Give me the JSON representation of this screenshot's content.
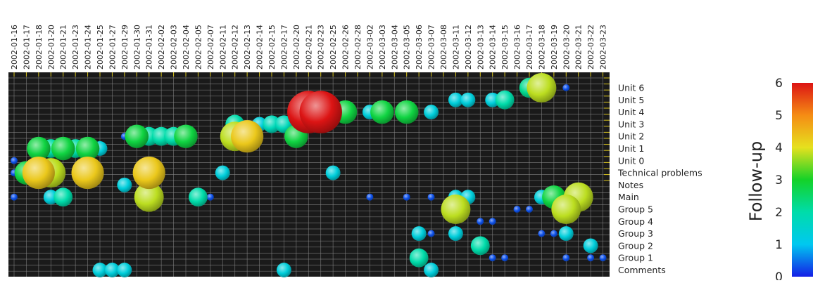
{
  "chart_data": {
    "type": "scatter",
    "title": "",
    "xlabel": "",
    "ylabel": "",
    "x_categories": [
      "2002-01-16",
      "2002-01-17",
      "2002-01-18",
      "2002-01-20",
      "2002-01-21",
      "2002-01-23",
      "2002-01-24",
      "2002-01-25",
      "2002-01-27",
      "2002-01-29",
      "2002-01-30",
      "2002-01-31",
      "2002-02-02",
      "2002-02-03",
      "2002-02-04",
      "2002-02-05",
      "2002-02-07",
      "2002-02-11",
      "2002-02-12",
      "2002-02-13",
      "2002-02-14",
      "2002-02-15",
      "2002-02-17",
      "2002-02-20",
      "2002-02-21",
      "2002-02-23",
      "2002-02-25",
      "2002-02-26",
      "2002-02-28",
      "2002-03-02",
      "2002-03-03",
      "2002-03-04",
      "2002-03-05",
      "2002-03-06",
      "2002-03-07",
      "2002-03-08",
      "2002-03-11",
      "2002-03-12",
      "2002-03-13",
      "2002-03-14",
      "2002-03-15",
      "2002-03-16",
      "2002-03-17",
      "2002-03-18",
      "2002-03-19",
      "2002-03-20",
      "2002-03-21",
      "2002-03-22",
      "2002-03-23"
    ],
    "y_categories": [
      "Unit 6",
      "Unit 5",
      "Unit 4",
      "Unit 3",
      "Unit 2",
      "Unit 1",
      "Unit 0",
      "Technical problems",
      "Notes",
      "Main",
      "Group 5",
      "Group 4",
      "Group 3",
      "Group 2",
      "Group 1",
      "Comments"
    ],
    "colorbar": {
      "label": "Follow-up",
      "min": 0,
      "max": 6,
      "ticks": [
        "0",
        "1",
        "2",
        "3",
        "4",
        "5",
        "6"
      ]
    },
    "points": [
      {
        "x": "2002-03-17",
        "y": "Unit 6",
        "value": 2.2
      },
      {
        "x": "2002-03-18",
        "y": "Unit 6",
        "value": 3.8
      },
      {
        "x": "2002-03-20",
        "y": "Unit 6",
        "value": 0.3
      },
      {
        "x": "2002-03-11",
        "y": "Unit 5",
        "value": 1.3
      },
      {
        "x": "2002-03-12",
        "y": "Unit 5",
        "value": 1.3
      },
      {
        "x": "2002-03-14",
        "y": "Unit 5",
        "value": 1.3
      },
      {
        "x": "2002-03-15",
        "y": "Unit 5",
        "value": 2.0
      },
      {
        "x": "2002-02-21",
        "y": "Unit 4",
        "value": 6.0
      },
      {
        "x": "2002-02-23",
        "y": "Unit 4",
        "value": 6.0
      },
      {
        "x": "2002-02-25",
        "y": "Unit 4",
        "value": 1.2
      },
      {
        "x": "2002-02-26",
        "y": "Unit 4",
        "value": 2.8
      },
      {
        "x": "2002-03-02",
        "y": "Unit 4",
        "value": 1.3
      },
      {
        "x": "2002-03-03",
        "y": "Unit 4",
        "value": 2.8
      },
      {
        "x": "2002-03-05",
        "y": "Unit 4",
        "value": 2.8
      },
      {
        "x": "2002-03-07",
        "y": "Unit 4",
        "value": 1.3
      },
      {
        "x": "2002-02-12",
        "y": "Unit 3",
        "value": 2.0
      },
      {
        "x": "2002-02-14",
        "y": "Unit 3",
        "value": 1.3
      },
      {
        "x": "2002-02-15",
        "y": "Unit 3",
        "value": 1.8
      },
      {
        "x": "2002-02-17",
        "y": "Unit 3",
        "value": 1.8
      },
      {
        "x": "2002-02-20",
        "y": "Unit 3",
        "value": 1.3
      },
      {
        "x": "2002-02-21",
        "y": "Unit 3",
        "value": 1.3
      },
      {
        "x": "2002-01-29",
        "y": "Unit 2",
        "value": 0.3
      },
      {
        "x": "2002-01-30",
        "y": "Unit 2",
        "value": 2.8
      },
      {
        "x": "2002-01-31",
        "y": "Unit 2",
        "value": 2.0
      },
      {
        "x": "2002-02-02",
        "y": "Unit 2",
        "value": 2.0
      },
      {
        "x": "2002-02-03",
        "y": "Unit 2",
        "value": 2.0
      },
      {
        "x": "2002-02-04",
        "y": "Unit 2",
        "value": 2.8
      },
      {
        "x": "2002-02-12",
        "y": "Unit 2",
        "value": 3.8
      },
      {
        "x": "2002-02-13",
        "y": "Unit 2",
        "value": 4.3
      },
      {
        "x": "2002-02-20",
        "y": "Unit 2",
        "value": 2.8
      },
      {
        "x": "2002-01-18",
        "y": "Unit 1",
        "value": 2.8
      },
      {
        "x": "2002-01-20",
        "y": "Unit 1",
        "value": 2.0
      },
      {
        "x": "2002-01-21",
        "y": "Unit 1",
        "value": 2.8
      },
      {
        "x": "2002-01-23",
        "y": "Unit 1",
        "value": 2.0
      },
      {
        "x": "2002-01-24",
        "y": "Unit 1",
        "value": 2.8
      },
      {
        "x": "2002-01-25",
        "y": "Unit 1",
        "value": 1.3
      },
      {
        "x": "2002-01-16",
        "y": "Unit 0",
        "value": 0.3
      },
      {
        "x": "2002-01-16",
        "y": "Technical problems",
        "value": 0.3
      },
      {
        "x": "2002-01-17",
        "y": "Technical problems",
        "value": 2.8
      },
      {
        "x": "2002-01-18",
        "y": "Technical problems",
        "value": 4.3
      },
      {
        "x": "2002-01-20",
        "y": "Technical problems",
        "value": 3.8
      },
      {
        "x": "2002-01-24",
        "y": "Technical problems",
        "value": 4.3
      },
      {
        "x": "2002-01-31",
        "y": "Technical problems",
        "value": 4.3
      },
      {
        "x": "2002-02-11",
        "y": "Technical problems",
        "value": 1.3
      },
      {
        "x": "2002-02-25",
        "y": "Technical problems",
        "value": 1.3
      },
      {
        "x": "2002-01-29",
        "y": "Notes",
        "value": 1.3
      },
      {
        "x": "2002-01-16",
        "y": "Main",
        "value": 0.3
      },
      {
        "x": "2002-01-20",
        "y": "Main",
        "value": 1.3
      },
      {
        "x": "2002-01-21",
        "y": "Main",
        "value": 2.0
      },
      {
        "x": "2002-01-31",
        "y": "Main",
        "value": 3.8
      },
      {
        "x": "2002-02-05",
        "y": "Main",
        "value": 2.0
      },
      {
        "x": "2002-02-07",
        "y": "Main",
        "value": 0.3
      },
      {
        "x": "2002-03-02",
        "y": "Main",
        "value": 0.3
      },
      {
        "x": "2002-03-05",
        "y": "Main",
        "value": 0.3
      },
      {
        "x": "2002-03-07",
        "y": "Main",
        "value": 0.3
      },
      {
        "x": "2002-03-11",
        "y": "Main",
        "value": 1.3
      },
      {
        "x": "2002-03-12",
        "y": "Main",
        "value": 1.3
      },
      {
        "x": "2002-03-18",
        "y": "Main",
        "value": 1.3
      },
      {
        "x": "2002-03-19",
        "y": "Main",
        "value": 2.8
      },
      {
        "x": "2002-03-21",
        "y": "Main",
        "value": 3.8
      },
      {
        "x": "2002-03-11",
        "y": "Group 5",
        "value": 3.8
      },
      {
        "x": "2002-03-16",
        "y": "Group 5",
        "value": 0.3
      },
      {
        "x": "2002-03-17",
        "y": "Group 5",
        "value": 0.3
      },
      {
        "x": "2002-03-20",
        "y": "Group 5",
        "value": 3.8
      },
      {
        "x": "2002-03-13",
        "y": "Group 4",
        "value": 0.3
      },
      {
        "x": "2002-03-14",
        "y": "Group 4",
        "value": 0.3
      },
      {
        "x": "2002-03-06",
        "y": "Group 3",
        "value": 1.3
      },
      {
        "x": "2002-03-07",
        "y": "Group 3",
        "value": 0.3
      },
      {
        "x": "2002-03-11",
        "y": "Group 3",
        "value": 1.3
      },
      {
        "x": "2002-03-18",
        "y": "Group 3",
        "value": 0.3
      },
      {
        "x": "2002-03-19",
        "y": "Group 3",
        "value": 0.3
      },
      {
        "x": "2002-03-20",
        "y": "Group 3",
        "value": 1.3
      },
      {
        "x": "2002-03-13",
        "y": "Group 2",
        "value": 2.0
      },
      {
        "x": "2002-03-22",
        "y": "Group 2",
        "value": 1.3
      },
      {
        "x": "2002-03-06",
        "y": "Group 1",
        "value": 2.0
      },
      {
        "x": "2002-03-14",
        "y": "Group 1",
        "value": 0.3
      },
      {
        "x": "2002-03-15",
        "y": "Group 1",
        "value": 0.3
      },
      {
        "x": "2002-03-20",
        "y": "Group 1",
        "value": 0.3
      },
      {
        "x": "2002-03-22",
        "y": "Group 1",
        "value": 0.3
      },
      {
        "x": "2002-03-23",
        "y": "Group 1",
        "value": 0.3
      },
      {
        "x": "2002-01-25",
        "y": "Comments",
        "value": 1.3
      },
      {
        "x": "2002-01-27",
        "y": "Comments",
        "value": 1.3
      },
      {
        "x": "2002-01-29",
        "y": "Comments",
        "value": 1.3
      },
      {
        "x": "2002-02-17",
        "y": "Comments",
        "value": 1.3
      },
      {
        "x": "2002-03-07",
        "y": "Comments",
        "value": 1.3
      }
    ],
    "size_encoding": "radius grows with value",
    "colors": {
      "plot_background": "#1a1a1a",
      "grid": "#8a8a8a",
      "highlight_ticks": "#d6c21a"
    },
    "grid": true
  }
}
